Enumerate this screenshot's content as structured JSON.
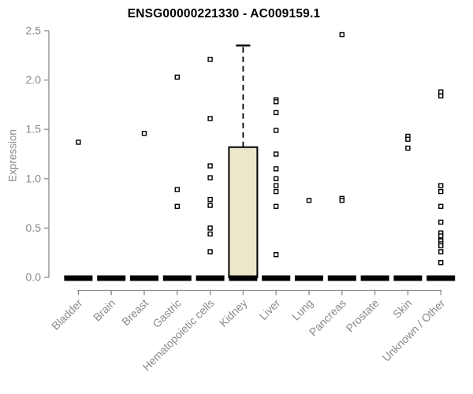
{
  "page": {
    "background": "#FFFFFF"
  },
  "chart_data": {
    "type": "boxplot",
    "title": "ENSG00000221330 - AC009159.1",
    "ylabel": "Expression",
    "xlabel": "",
    "ylim": [
      0,
      2.5
    ],
    "yticks": [
      "0.0",
      "0.5",
      "1.0",
      "1.5",
      "2.0",
      "2.5"
    ],
    "ytick_values": [
      0,
      0.5,
      1.0,
      1.5,
      2.0,
      2.5
    ],
    "grid": false,
    "legend": null,
    "categories": [
      "Bladder",
      "Brain",
      "Breast",
      "Gastric",
      "Hematopoietic cells",
      "Kidney",
      "Liver",
      "Lung",
      "Pancreas",
      "Prostate",
      "Skin",
      "Unknown / Other"
    ],
    "series": [
      {
        "category": "Bladder",
        "q1": 0,
        "median": 0,
        "q3": 0,
        "whisker_low": 0,
        "whisker_high": 0,
        "outliers": [
          1.37
        ]
      },
      {
        "category": "Brain",
        "q1": 0,
        "median": 0,
        "q3": 0,
        "whisker_low": 0,
        "whisker_high": 0,
        "outliers": []
      },
      {
        "category": "Breast",
        "q1": 0,
        "median": 0,
        "q3": 0,
        "whisker_low": 0,
        "whisker_high": 0,
        "outliers": [
          1.46
        ]
      },
      {
        "category": "Gastric",
        "q1": 0,
        "median": 0,
        "q3": 0,
        "whisker_low": 0,
        "whisker_high": 0,
        "outliers": [
          2.03,
          0.89,
          0.72
        ]
      },
      {
        "category": "Hematopoietic cells",
        "q1": 0,
        "median": 0,
        "q3": 0,
        "whisker_low": 0,
        "whisker_high": 0,
        "outliers": [
          2.21,
          1.61,
          1.13,
          1.01,
          0.79,
          0.73,
          0.5,
          0.44,
          0.26
        ]
      },
      {
        "category": "Kidney",
        "q1": 0,
        "median": 0,
        "q3": 1.32,
        "whisker_low": 0,
        "whisker_high": 2.35,
        "outliers": []
      },
      {
        "category": "Liver",
        "q1": 0,
        "median": 0,
        "q3": 0,
        "whisker_low": 0,
        "whisker_high": 0,
        "outliers": [
          1.8,
          1.78,
          1.67,
          1.49,
          1.25,
          1.1,
          1.0,
          0.93,
          0.87,
          0.72,
          0.23
        ]
      },
      {
        "category": "Lung",
        "q1": 0,
        "median": 0,
        "q3": 0,
        "whisker_low": 0,
        "whisker_high": 0,
        "outliers": [
          0.78
        ]
      },
      {
        "category": "Pancreas",
        "q1": 0,
        "median": 0,
        "q3": 0,
        "whisker_low": 0,
        "whisker_high": 0,
        "outliers": [
          2.46,
          0.8,
          0.78
        ]
      },
      {
        "category": "Prostate",
        "q1": 0,
        "median": 0,
        "q3": 0,
        "whisker_low": 0,
        "whisker_high": 0,
        "outliers": []
      },
      {
        "category": "Skin",
        "q1": 0,
        "median": 0,
        "q3": 0,
        "whisker_low": 0,
        "whisker_high": 0,
        "outliers": [
          1.43,
          1.4,
          1.31
        ]
      },
      {
        "category": "Unknown / Other",
        "q1": 0,
        "median": 0,
        "q3": 0,
        "whisker_low": 0,
        "whisker_high": 0,
        "outliers": [
          1.88,
          1.84,
          0.93,
          0.87,
          0.72,
          0.56,
          0.45,
          0.42,
          0.37,
          0.34,
          0.32,
          0.26,
          0.15
        ]
      }
    ],
    "colors": {
      "box_fill": "#ECE7CA",
      "box_border": "#000000",
      "axis": "#8a8a8a",
      "tick_label": "#8a8a8a",
      "title": "#000000",
      "marker_stroke": "#000000",
      "marker_fill": "#FFFFFF",
      "median_bar": "#000000"
    }
  }
}
